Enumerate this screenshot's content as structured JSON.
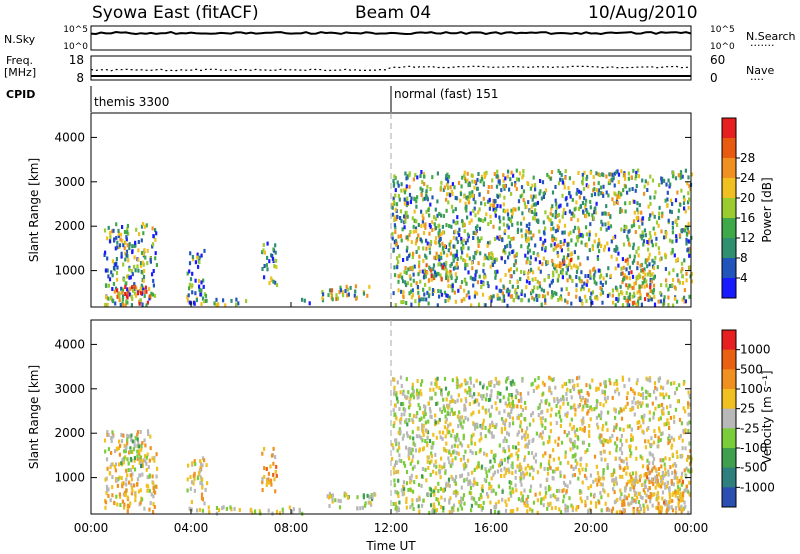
{
  "header": {
    "station": "Syowa East (fitACF)",
    "beam": "Beam 04",
    "date": "10/Aug/2010"
  },
  "noise_panel": {
    "left_label": "N.Sky",
    "right_label": "N.Search",
    "left_ticks": [
      "10^5",
      "10^0"
    ],
    "right_ticks": [
      "10^5",
      "10^0"
    ]
  },
  "freq_panel": {
    "left_label_top": "Freq.",
    "left_label_bottom": "[MHz]",
    "right_label": "Nave",
    "left_ticks": [
      "18",
      "8"
    ],
    "right_ticks": [
      "60",
      "0"
    ]
  },
  "cpid_panel": {
    "label": "CPID",
    "modes": [
      {
        "name": "themis 3300",
        "start_hour": 0
      },
      {
        "name": "normal (fast) 151",
        "start_hour": 12
      }
    ]
  },
  "x_axis": {
    "label": "Time UT",
    "range_hours": [
      0,
      24
    ],
    "ticks": [
      "00:00",
      "04:00",
      "08:00",
      "12:00",
      "16:00",
      "20:00",
      "00:00"
    ]
  },
  "chart_data": [
    {
      "type": "heatmap",
      "title": "",
      "xlabel": "Time UT",
      "ylabel": "Slant Range [km]",
      "xlim_hours": [
        0,
        24
      ],
      "ylim": [
        180,
        4550
      ],
      "yticks": [
        "1000",
        "2000",
        "3000",
        "4000"
      ],
      "colorbar": {
        "label": "Power [dB]",
        "ticks": [
          "4",
          "8",
          "12",
          "16",
          "20",
          "24",
          "28"
        ],
        "range": [
          0,
          30
        ],
        "colors": [
          "#1a1aff",
          "#2255bb",
          "#2f8f6f",
          "#3fa84a",
          "#9acb2f",
          "#f0c020",
          "#f09020",
          "#e85a10",
          "#e62020"
        ]
      },
      "regions": [
        {
          "t0": 0.5,
          "t1": 2.6,
          "r0": 260,
          "r1": 2100,
          "v": 11
        },
        {
          "t0": 0.8,
          "t1": 2.4,
          "r0": 250,
          "r1": 700,
          "v": 22
        },
        {
          "t0": 3.8,
          "t1": 4.6,
          "r0": 260,
          "r1": 1500,
          "v": 9
        },
        {
          "t0": 4.5,
          "t1": 6.2,
          "r0": 250,
          "r1": 400,
          "v": 10
        },
        {
          "t0": 6.8,
          "t1": 7.4,
          "r0": 700,
          "r1": 1700,
          "v": 10
        },
        {
          "t0": 8.4,
          "t1": 8.8,
          "r0": 250,
          "r1": 400,
          "v": 8
        },
        {
          "t0": 9.2,
          "t1": 11.2,
          "r0": 350,
          "r1": 700,
          "v": 14
        },
        {
          "t0": 12.0,
          "t1": 17.0,
          "r0": 250,
          "r1": 3300,
          "v": 12
        },
        {
          "t0": 13.3,
          "t1": 14.4,
          "r0": 800,
          "r1": 1200,
          "v": 20
        },
        {
          "t0": 17.0,
          "t1": 24.0,
          "r0": 250,
          "r1": 3300,
          "v": 12
        },
        {
          "t0": 18.6,
          "t1": 19.2,
          "r0": 1100,
          "r1": 1450,
          "v": 21
        },
        {
          "t0": 21.2,
          "t1": 22.5,
          "r0": 250,
          "r1": 1300,
          "v": 18
        }
      ]
    },
    {
      "type": "heatmap",
      "title": "",
      "xlabel": "Time UT",
      "ylabel": "Slant Range [km]",
      "xlim_hours": [
        0,
        24
      ],
      "ylim": [
        180,
        4550
      ],
      "yticks": [
        "1000",
        "2000",
        "3000",
        "4000"
      ],
      "colorbar": {
        "label": "Velocity [m s⁻¹]",
        "ticks": [
          "1000",
          "500",
          "100",
          "25",
          "-25",
          "-100",
          "-500",
          "-1000"
        ],
        "range": [
          -1200,
          1200
        ],
        "colors": [
          "#2a4fb0",
          "#2f7f7f",
          "#3f9f4f",
          "#7acc3a",
          "#b8b8b8",
          "#f0c020",
          "#f09020",
          "#e86010",
          "#e62020"
        ]
      },
      "regions": [
        {
          "t0": 0.5,
          "t1": 2.6,
          "r0": 260,
          "r1": 2100,
          "v": -200
        },
        {
          "t0": 1.1,
          "t1": 2.0,
          "r0": 1300,
          "r1": 2000,
          "v": 300
        },
        {
          "t0": 3.8,
          "t1": 4.6,
          "r0": 260,
          "r1": 1500,
          "v": -150
        },
        {
          "t0": 4.5,
          "t1": 8.5,
          "r0": 230,
          "r1": 380,
          "v": -60
        },
        {
          "t0": 6.8,
          "t1": 7.4,
          "r0": 700,
          "r1": 1700,
          "v": -400
        },
        {
          "t0": 9.2,
          "t1": 11.4,
          "r0": 350,
          "r1": 700,
          "v": 80
        },
        {
          "t0": 12.0,
          "t1": 17.0,
          "r0": 250,
          "r1": 3300,
          "v": 60
        },
        {
          "t0": 17.0,
          "t1": 24.0,
          "r0": 250,
          "r1": 3300,
          "v": -80
        },
        {
          "t0": 21.2,
          "t1": 23.8,
          "r0": 250,
          "r1": 1300,
          "v": -300
        }
      ]
    }
  ]
}
